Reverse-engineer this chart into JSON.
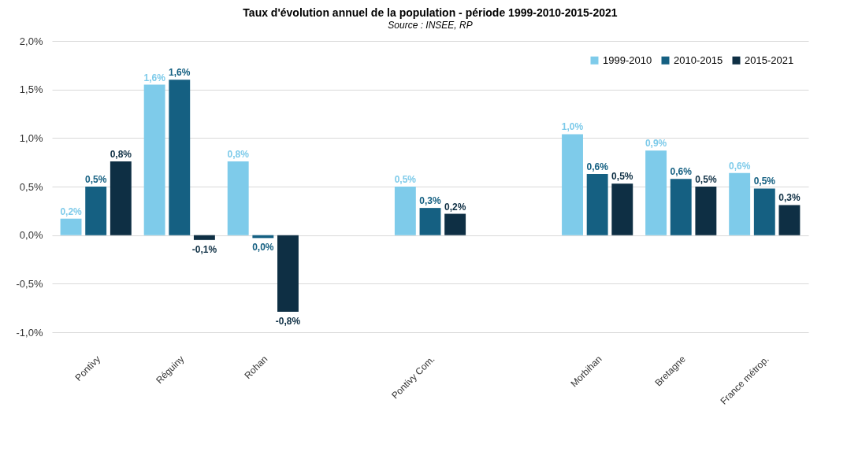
{
  "chart_data": {
    "type": "bar",
    "title": "Taux d'évolution annuel de la population - période 1999-2010-2015-2021",
    "subtitle": "Source : INSEE, RP",
    "categories": [
      "Pontivy",
      "Réguiny",
      "Rohan",
      null,
      "Pontivy Com.",
      null,
      "Morbihan",
      "Bretagne",
      "France métrop."
    ],
    "series": [
      {
        "name": "1999-2010",
        "color": "#7ecbea",
        "values": [
          0.17,
          1.55,
          0.76,
          null,
          0.5,
          null,
          1.04,
          0.87,
          0.64
        ],
        "value_labels": [
          "0,2%",
          "1,6%",
          "0,8%",
          null,
          "0,5%",
          null,
          "1,0%",
          "0,9%",
          "0,6%"
        ]
      },
      {
        "name": "2010-2015",
        "color": "#156082",
        "values": [
          0.5,
          1.6,
          -0.03,
          null,
          0.28,
          null,
          0.63,
          0.58,
          0.48
        ],
        "value_labels": [
          "0,5%",
          "1,6%",
          "0,0%",
          null,
          "0,3%",
          null,
          "0,6%",
          "0,6%",
          "0,5%"
        ]
      },
      {
        "name": "2015-2021",
        "color": "#0e2f44",
        "values": [
          0.76,
          -0.05,
          -0.79,
          null,
          0.22,
          null,
          0.53,
          0.5,
          0.31
        ],
        "value_labels": [
          "0,8%",
          "-0,1%",
          "-0,8%",
          null,
          "0,2%",
          null,
          "0,5%",
          "0,5%",
          "0,3%"
        ]
      }
    ],
    "ylim": [
      -1.0,
      2.0
    ],
    "yticks": [
      {
        "value": -1.0,
        "label": "-1,0%"
      },
      {
        "value": -0.5,
        "label": "-0,5%"
      },
      {
        "value": 0,
        "label": "0,0%"
      },
      {
        "value": 0.5,
        "label": "0,5%"
      },
      {
        "value": 1.0,
        "label": "1,0%"
      },
      {
        "value": 1.5,
        "label": "1,5%"
      },
      {
        "value": 2.0,
        "label": "2,0%"
      }
    ],
    "grid": "y",
    "legend": "top right"
  }
}
